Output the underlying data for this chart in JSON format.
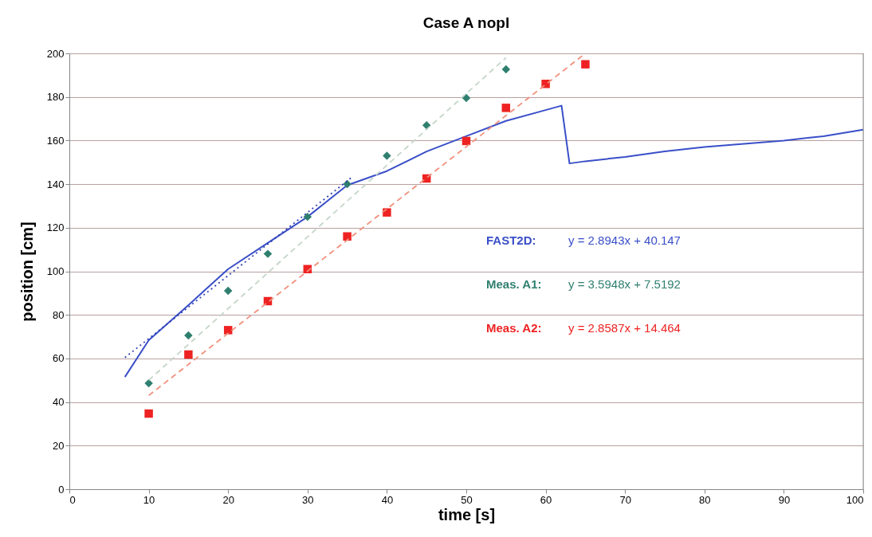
{
  "chart_data": {
    "type": "line",
    "title": "Case A nopl",
    "xlabel": "time [s]",
    "ylabel": "position [cm]",
    "xlim": [
      0,
      100
    ],
    "xticks": [
      0,
      10,
      20,
      30,
      40,
      50,
      60,
      70,
      80,
      90,
      100
    ],
    "ylim": [
      0,
      200
    ],
    "yticks": [
      0,
      20,
      40,
      60,
      80,
      100,
      120,
      140,
      160,
      180,
      200
    ],
    "grid": "y",
    "annotations": [
      "y = 2.8943x + 40.147",
      "y = 3.5948x + 7.5192",
      "y = 2.8587x + 14.464"
    ],
    "series": [
      {
        "name": "FAST2D:",
        "color": "#3a4fc8",
        "marker": "none",
        "line_style": "solid",
        "x": [
          7,
          10,
          15,
          20,
          25,
          30,
          35,
          40,
          45,
          50,
          55,
          60,
          62,
          63,
          65,
          70,
          75,
          80,
          85,
          90,
          95,
          100
        ],
        "values": [
          51.5,
          68.4,
          84.5,
          101,
          113,
          125,
          139.5,
          146,
          155,
          162,
          169,
          174,
          176,
          149.5,
          150.5,
          152.5,
          155,
          157,
          158.5,
          160,
          162,
          165
        ]
      },
      {
        "name": "Meas. A1:",
        "type": "scatter",
        "color": "#2f7f6f",
        "marker": "diamond",
        "x": [
          10,
          15,
          20,
          25,
          30,
          35,
          40,
          45,
          50,
          55
        ],
        "values": [
          48.6,
          70.6,
          91,
          108,
          125,
          140,
          153,
          167,
          179.5,
          192.7
        ]
      },
      {
        "name": "Meas. A2:",
        "type": "scatter",
        "color": "#ee2222",
        "marker": "square",
        "x": [
          10,
          15,
          20,
          25,
          30,
          35,
          40,
          45,
          50,
          55,
          60,
          65
        ],
        "values": [
          34.7,
          61.8,
          73,
          86.3,
          101,
          116,
          127,
          142.6,
          159.8,
          175,
          186,
          195
        ]
      },
      {
        "color": "#3040b0",
        "marker": "none",
        "line_style": "dotted",
        "x": [
          7,
          35.5
        ],
        "values": [
          60.4,
          142.9
        ]
      },
      {
        "color": "#c4d6c8",
        "marker": "none",
        "line_style": "dashed",
        "x": [
          10,
          55
        ],
        "values": [
          50,
          198
        ]
      },
      {
        "color": "#f0907c",
        "marker": "none",
        "line_style": "dashed",
        "x": [
          10,
          65
        ],
        "values": [
          43,
          200
        ]
      }
    ]
  }
}
